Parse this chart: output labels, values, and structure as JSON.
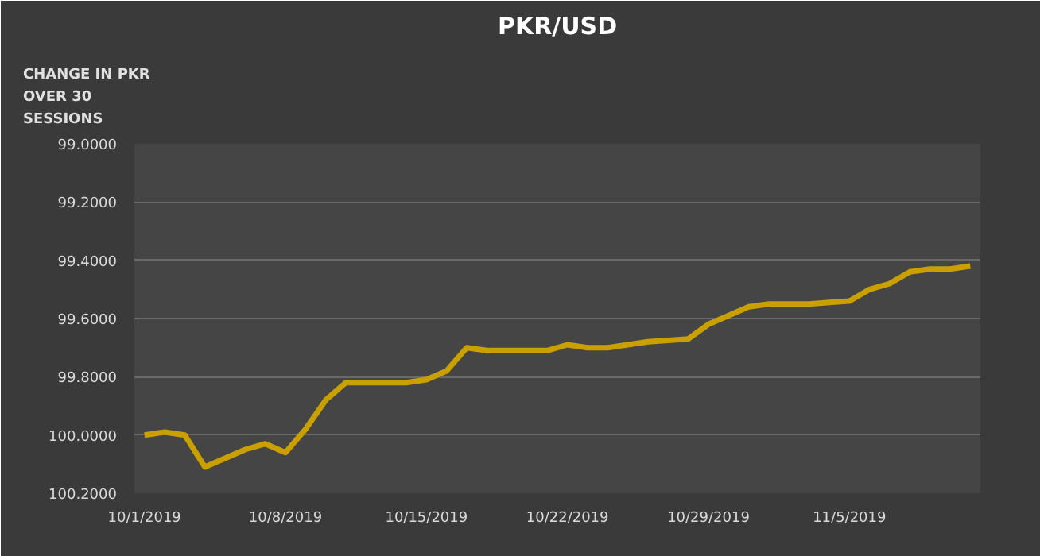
{
  "chart_data": {
    "type": "line",
    "title": "PKR/USD",
    "ylabel": "CHANGE IN PKR OVER 30 SESSIONS",
    "x": [
      "2019-10-01",
      "2019-10-02",
      "2019-10-03",
      "2019-10-04",
      "2019-10-05",
      "2019-10-06",
      "2019-10-07",
      "2019-10-08",
      "2019-10-09",
      "2019-10-10",
      "2019-10-11",
      "2019-10-12",
      "2019-10-13",
      "2019-10-14",
      "2019-10-15",
      "2019-10-16",
      "2019-10-17",
      "2019-10-18",
      "2019-10-19",
      "2019-10-20",
      "2019-10-21",
      "2019-10-22",
      "2019-10-23",
      "2019-10-24",
      "2019-10-25",
      "2019-10-26",
      "2019-10-27",
      "2019-10-28",
      "2019-10-29",
      "2019-10-30",
      "2019-10-31",
      "2019-11-01",
      "2019-11-02",
      "2019-11-03",
      "2019-11-04",
      "2019-11-05",
      "2019-11-06",
      "2019-11-07",
      "2019-11-08",
      "2019-11-09",
      "2019-11-10",
      "2019-11-11"
    ],
    "series": [
      {
        "color": "#c9a000",
        "values": [
          100.0,
          99.99,
          100.0,
          100.11,
          100.08,
          100.05,
          100.03,
          100.06,
          99.98,
          99.88,
          99.82,
          99.82,
          99.82,
          99.82,
          99.81,
          99.78,
          99.7,
          99.71,
          99.71,
          99.71,
          99.71,
          99.69,
          99.7,
          99.7,
          99.69,
          99.68,
          99.675,
          99.67,
          99.62,
          99.59,
          99.56,
          99.55,
          99.55,
          99.55,
          99.545,
          99.54,
          99.5,
          99.48,
          99.44,
          99.43,
          99.43,
          99.42
        ]
      }
    ],
    "xlim": [
      "2019-09-30T12:00",
      "2019-11-11T12:00"
    ],
    "xticks": [
      {
        "value": "2019-10-01",
        "label": "10/1/2019"
      },
      {
        "value": "2019-10-08",
        "label": "10/8/2019"
      },
      {
        "value": "2019-10-15",
        "label": "10/15/2019"
      },
      {
        "value": "2019-10-22",
        "label": "10/22/2019"
      },
      {
        "value": "2019-10-29",
        "label": "10/29/2019"
      },
      {
        "value": "2019-11-05",
        "label": "11/5/2019"
      }
    ],
    "ylim": [
      100.2,
      99.0
    ],
    "yticks": [
      {
        "value": 99.0,
        "label": "99.0000"
      },
      {
        "value": 99.2,
        "label": "99.2000"
      },
      {
        "value": 99.4,
        "label": "99.4000"
      },
      {
        "value": 99.6,
        "label": "99.6000"
      },
      {
        "value": 99.8,
        "label": "99.8000"
      },
      {
        "value": 100.0,
        "label": "100.0000"
      },
      {
        "value": 100.2,
        "label": "100.2000"
      }
    ],
    "grid": "y",
    "marker": "none",
    "line_style": "solid"
  }
}
